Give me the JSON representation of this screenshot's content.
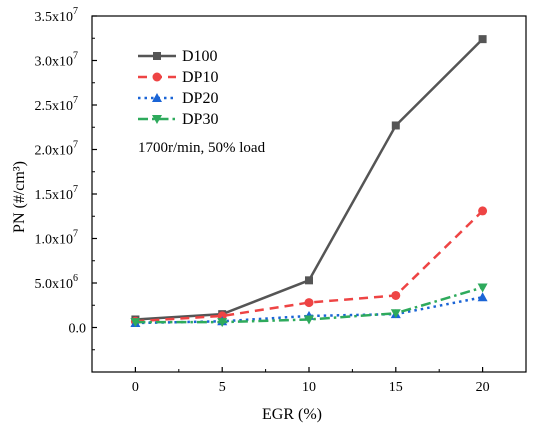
{
  "chart_data": {
    "type": "line",
    "xlabel": "EGR (%)",
    "ylabel": "PN (#/cm³)",
    "x": [
      0,
      5,
      10,
      15,
      20
    ],
    "xlim": [
      -2.5,
      22.5
    ],
    "ylim": [
      -0.5,
      3.5
    ],
    "y_unit": 10000000,
    "xticks": [
      {
        "value": 0,
        "label": "0"
      },
      {
        "value": 5,
        "label": "5"
      },
      {
        "value": 10,
        "label": "10"
      },
      {
        "value": 15,
        "label": "15"
      },
      {
        "value": 20,
        "label": "20"
      }
    ],
    "yticks": [
      {
        "value": 0.0,
        "mantissa": "0.0",
        "exp": ""
      },
      {
        "value": 0.5,
        "mantissa": "5.0x10",
        "exp": "6"
      },
      {
        "value": 1.0,
        "mantissa": "1.0x10",
        "exp": "7"
      },
      {
        "value": 1.5,
        "mantissa": "1.5x10",
        "exp": "7"
      },
      {
        "value": 2.0,
        "mantissa": "2.0x10",
        "exp": "7"
      },
      {
        "value": 2.5,
        "mantissa": "2.5x10",
        "exp": "7"
      },
      {
        "value": 3.0,
        "mantissa": "3.0x10",
        "exp": "7"
      },
      {
        "value": 3.5,
        "mantissa": "3.5x10",
        "exp": "7"
      }
    ],
    "series": [
      {
        "name": "D100",
        "color": "#555555",
        "marker": "square",
        "dash": "solid",
        "values": [
          0.09,
          0.15,
          0.53,
          2.27,
          3.24
        ]
      },
      {
        "name": "DP10",
        "color": "#ee4444",
        "marker": "circle",
        "dash": "dash",
        "values": [
          0.07,
          0.13,
          0.28,
          0.36,
          1.31
        ]
      },
      {
        "name": "DP20",
        "color": "#1a64d6",
        "marker": "triangle-up",
        "dash": "dot",
        "values": [
          0.05,
          0.07,
          0.13,
          0.15,
          0.34
        ]
      },
      {
        "name": "DP30",
        "color": "#2eaa5c",
        "marker": "triangle-down",
        "dash": "dashdot",
        "values": [
          0.06,
          0.06,
          0.09,
          0.16,
          0.45
        ]
      }
    ],
    "legend_position": "top-left",
    "annotation": "1700r/min, 50% load",
    "grid": false
  }
}
